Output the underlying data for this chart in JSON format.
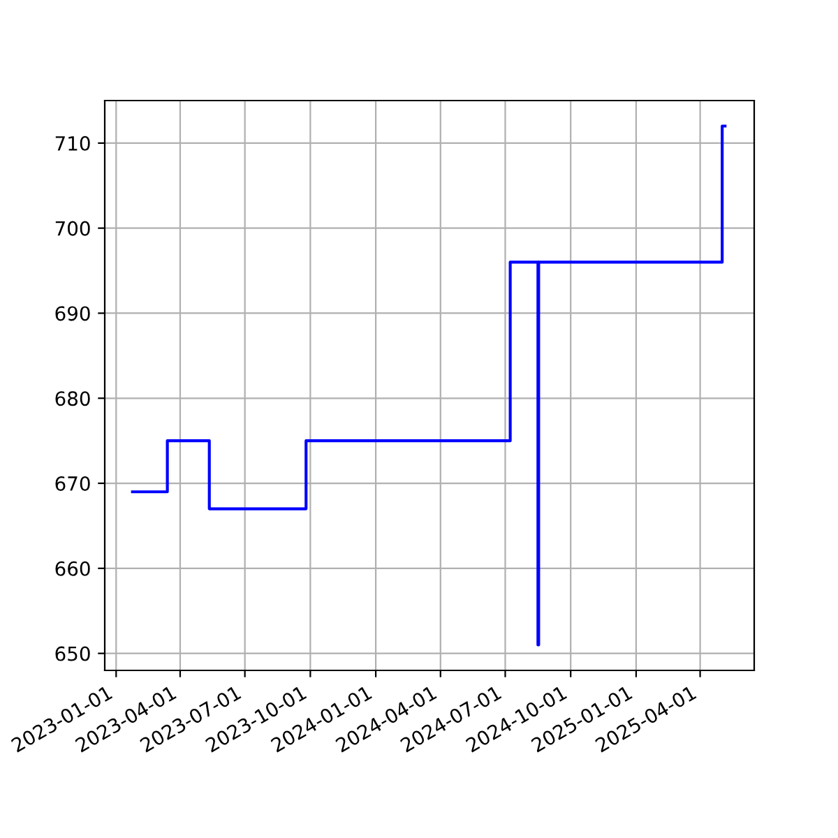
{
  "chart_data": {
    "type": "step",
    "x": [
      "2023-01-24",
      "2023-03-14",
      "2023-05-12",
      "2023-09-25",
      "2024-07-08",
      "2024-08-16",
      "2024-08-17",
      "2025-05-02",
      "2025-05-06"
    ],
    "series": [
      {
        "color": "#0000ff",
        "values": [
          669,
          675,
          667,
          675,
          696,
          651,
          696,
          712,
          712
        ]
      }
    ],
    "xlim": [
      "2022-12-16",
      "2025-06-16"
    ],
    "xticks": [
      "2023-01-01",
      "2023-04-01",
      "2023-07-01",
      "2023-10-01",
      "2024-01-01",
      "2024-04-01",
      "2024-07-01",
      "2024-10-01",
      "2025-01-01",
      "2025-04-01"
    ],
    "ylim": [
      648,
      715
    ],
    "yticks": [
      650,
      660,
      670,
      680,
      690,
      700,
      710
    ],
    "grid": true
  }
}
